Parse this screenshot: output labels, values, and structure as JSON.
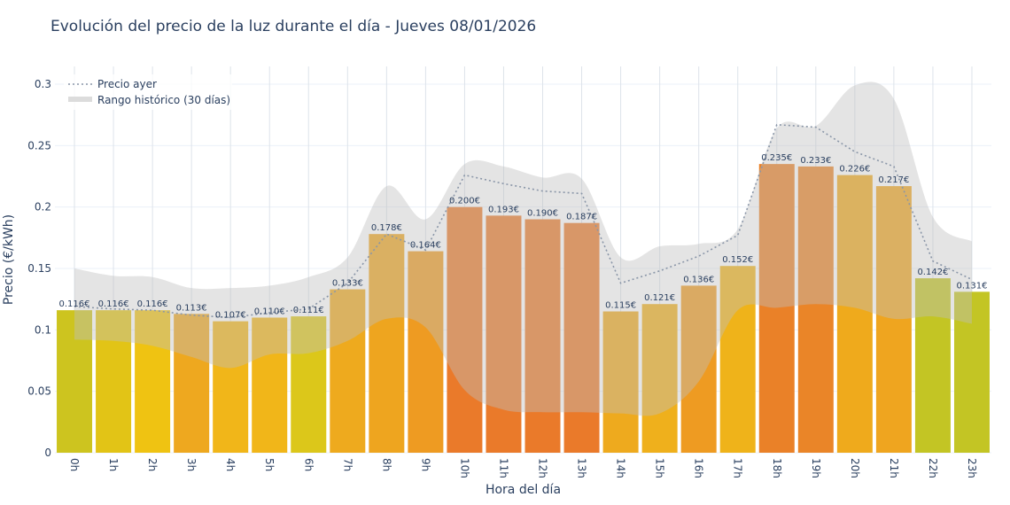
{
  "chart_data": {
    "type": "bar",
    "title": "Evolución del precio de la luz durante el día - Jueves 08/01/2026",
    "xlabel": "Hora del día",
    "ylabel": "Precio (€/kWh)",
    "ylim": [
      0,
      0.31
    ],
    "yticks": [
      "0",
      "0.05",
      "0.1",
      "0.15",
      "0.2",
      "0.25",
      "0.3"
    ],
    "grid": true,
    "legend_position": "top-left",
    "categories": [
      "0h",
      "1h",
      "2h",
      "3h",
      "4h",
      "5h",
      "6h",
      "7h",
      "8h",
      "9h",
      "10h",
      "11h",
      "12h",
      "13h",
      "14h",
      "15h",
      "16h",
      "17h",
      "18h",
      "19h",
      "20h",
      "21h",
      "22h",
      "23h"
    ],
    "values": [
      0.116,
      0.116,
      0.116,
      0.113,
      0.107,
      0.11,
      0.111,
      0.133,
      0.178,
      0.164,
      0.2,
      0.193,
      0.19,
      0.187,
      0.115,
      0.121,
      0.136,
      0.152,
      0.235,
      0.233,
      0.226,
      0.217,
      0.142,
      0.131
    ],
    "labels": [
      "0.116€",
      "0.116€",
      "0.116€",
      "0.113€",
      "0.107€",
      "0.110€",
      "0.111€",
      "0.133€",
      "0.178€",
      "0.164€",
      "0.200€",
      "0.193€",
      "0.190€",
      "0.187€",
      "0.115€",
      "0.121€",
      "0.136€",
      "0.152€",
      "0.235€",
      "0.233€",
      "0.226€",
      "0.217€",
      "0.142€",
      "0.131€"
    ],
    "bar_colors": [
      "#cdc41f",
      "#e2c416",
      "#efc312",
      "#eea81f",
      "#f1b619",
      "#f1b619",
      "#dcc71a",
      "#eeaa1e",
      "#eea51f",
      "#ee9b22",
      "#ea7a2a",
      "#ea7a2a",
      "#ea7a2a",
      "#ea7a2a",
      "#eeaa1e",
      "#efb01c",
      "#ee9b22",
      "#efb31a",
      "#ea8128",
      "#ea8528",
      "#efaa1c",
      "#efa51f",
      "#c3c524",
      "#c3c524"
    ],
    "series": [
      {
        "name": "Precio ayer",
        "type": "line",
        "style": "dotted",
        "color": "#8a96a8",
        "values": [
          0.119,
          0.117,
          0.116,
          0.112,
          0.11,
          0.114,
          0.117,
          0.138,
          0.178,
          0.165,
          0.226,
          0.219,
          0.213,
          0.211,
          0.138,
          0.148,
          0.16,
          0.177,
          0.267,
          0.265,
          0.245,
          0.233,
          0.156,
          0.141
        ]
      },
      {
        "name": "Rango histórico (30 días)",
        "type": "band",
        "color": "#d3d3d3",
        "upper": [
          0.15,
          0.144,
          0.143,
          0.134,
          0.134,
          0.136,
          0.143,
          0.159,
          0.217,
          0.19,
          0.235,
          0.233,
          0.224,
          0.223,
          0.159,
          0.168,
          0.17,
          0.182,
          0.264,
          0.266,
          0.299,
          0.288,
          0.192,
          0.172
        ],
        "lower": [
          0.092,
          0.091,
          0.087,
          0.078,
          0.069,
          0.08,
          0.081,
          0.091,
          0.109,
          0.102,
          0.051,
          0.035,
          0.033,
          0.033,
          0.032,
          0.032,
          0.058,
          0.116,
          0.118,
          0.121,
          0.118,
          0.109,
          0.111,
          0.105
        ]
      }
    ]
  }
}
